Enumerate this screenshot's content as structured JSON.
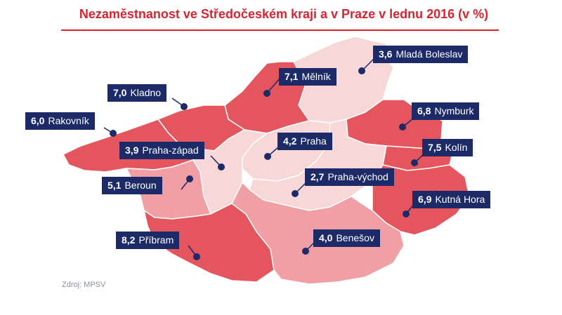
{
  "title": "Nezaměstnanost ve Středočeském kraji a v Praze v lednu 2016 (v %)",
  "source": "Zdroj: MPSV",
  "colors": {
    "title": "#d9232f",
    "label_bg": "#1c2a67",
    "high": "#e5555d",
    "mid": "#f0a0a5",
    "low": "#f8d7d9"
  },
  "districts": [
    {
      "id": "mlada-boleslav",
      "value": "3,6",
      "name": "Mladá Boleslav",
      "shade": "low"
    },
    {
      "id": "melnik",
      "value": "7,1",
      "name": "Mělník",
      "shade": "high"
    },
    {
      "id": "kladno",
      "value": "7,0",
      "name": "Kladno",
      "shade": "high"
    },
    {
      "id": "rakovnik",
      "value": "6,0",
      "name": "Rakovník",
      "shade": "high"
    },
    {
      "id": "nymburk",
      "value": "6,8",
      "name": "Nymburk",
      "shade": "high"
    },
    {
      "id": "praha",
      "value": "4,2",
      "name": "Praha",
      "shade": "low"
    },
    {
      "id": "praha-zapad",
      "value": "3,9",
      "name": "Praha-západ",
      "shade": "low"
    },
    {
      "id": "kolin",
      "value": "7,5",
      "name": "Kolín",
      "shade": "high"
    },
    {
      "id": "beroun",
      "value": "5,1",
      "name": "Beroun",
      "shade": "mid"
    },
    {
      "id": "praha-vychod",
      "value": "2,7",
      "name": "Praha-východ",
      "shade": "low"
    },
    {
      "id": "kutna-hora",
      "value": "6,9",
      "name": "Kutná Hora",
      "shade": "high"
    },
    {
      "id": "pribram",
      "value": "8,2",
      "name": "Příbram",
      "shade": "high"
    },
    {
      "id": "benesov",
      "value": "4,0",
      "name": "Benešov",
      "shade": "mid"
    }
  ]
}
